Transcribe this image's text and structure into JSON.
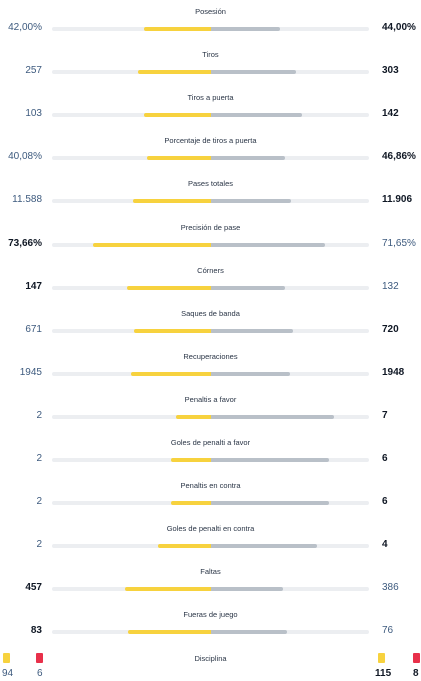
{
  "stats": [
    {
      "label": "Posesión",
      "home": "42,00%",
      "away": "44,00%",
      "home_share": 0.42,
      "away_share": 0.44,
      "bold": "away"
    },
    {
      "label": "Tiros",
      "home": "257",
      "away": "303",
      "home_share": 0.46,
      "away_share": 0.54,
      "bold": "away"
    },
    {
      "label": "Tiros a puerta",
      "home": "103",
      "away": "142",
      "home_share": 0.42,
      "away_share": 0.58,
      "bold": "away"
    },
    {
      "label": "Porcentaje de tiros a puerta",
      "home": "40,08%",
      "away": "46,86%",
      "home_share": 0.4,
      "away_share": 0.47,
      "bold": "away"
    },
    {
      "label": "Pases totales",
      "home": "11.588",
      "away": "11.906",
      "home_share": 0.49,
      "away_share": 0.51,
      "bold": "away"
    },
    {
      "label": "Precisión de pase",
      "home": "73,66%",
      "away": "71,65%",
      "home_share": 0.74,
      "away_share": 0.72,
      "bold": "home"
    },
    {
      "label": "Córners",
      "home": "147",
      "away": "132",
      "home_share": 0.53,
      "away_share": 0.47,
      "bold": "home"
    },
    {
      "label": "Saques de banda",
      "home": "671",
      "away": "720",
      "home_share": 0.48,
      "away_share": 0.52,
      "bold": "away"
    },
    {
      "label": "Recuperaciones",
      "home": "1945",
      "away": "1948",
      "home_share": 0.5,
      "away_share": 0.5,
      "bold": "away"
    },
    {
      "label": "Penaltis a favor",
      "home": "2",
      "away": "7",
      "home_share": 0.22,
      "away_share": 0.78,
      "bold": "away"
    },
    {
      "label": "Goles de penalti a favor",
      "home": "2",
      "away": "6",
      "home_share": 0.25,
      "away_share": 0.75,
      "bold": "away"
    },
    {
      "label": "Penaltis en contra",
      "home": "2",
      "away": "6",
      "home_share": 0.25,
      "away_share": 0.75,
      "bold": "away"
    },
    {
      "label": "Goles de penalti en contra",
      "home": "2",
      "away": "4",
      "home_share": 0.33,
      "away_share": 0.67,
      "bold": "away"
    },
    {
      "label": "Faltas",
      "home": "457",
      "away": "386",
      "home_share": 0.54,
      "away_share": 0.46,
      "bold": "home"
    },
    {
      "label": "Fueras de juego",
      "home": "83",
      "away": "76",
      "home_share": 0.52,
      "away_share": 0.48,
      "bold": "home"
    }
  ],
  "discipline": {
    "label": "Disciplina",
    "home_yellow": "94",
    "home_red": "6",
    "away_yellow": "115",
    "away_red": "8"
  },
  "colors": {
    "home_bar": "#f7d23e",
    "away_bar": "#b9c0c8",
    "track": "#eceef1",
    "red_card": "#e8304a",
    "yellow_card": "#f7d23e"
  }
}
